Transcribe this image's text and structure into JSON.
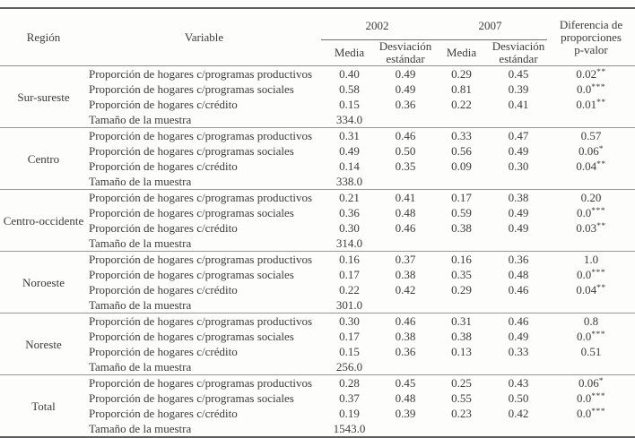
{
  "table": {
    "header": {
      "region": "Región",
      "variable": "Variable",
      "year_2002": "2002",
      "year_2007": "2007",
      "media_2002": "Media",
      "desviacion_2002": "Desviación\nestándar",
      "media_2007": "Media",
      "desviacion_2007": "Desviación\nestándar",
      "diferencia": "Diferencia de\nproporciones\np-valor"
    },
    "labels": {
      "sample": "Tamaño de la muestra"
    },
    "blocks": [
      {
        "region": "Sur-sureste",
        "rows": [
          {
            "variable": "Proporción de hogares c/programas productivos",
            "media_2002": "0.40",
            "de_2002": "0.49",
            "media_2007": "0.29",
            "de_2007": "0.45",
            "p": "0.02",
            "stars": "**"
          },
          {
            "variable": "Proporción de  hogares c/programas sociales",
            "media_2002": "0.58",
            "de_2002": "0.49",
            "media_2007": "0.81",
            "de_2007": "0.39",
            "p": "0.0",
            "stars": "***"
          },
          {
            "variable": "Proporción de hogares c/crédito",
            "media_2002": "0.15",
            "de_2002": "0.36",
            "media_2007": "0.22",
            "de_2007": "0.41",
            "p": "0.01",
            "stars": "**"
          }
        ],
        "sample_size": "334.0"
      },
      {
        "region": "Centro",
        "rows": [
          {
            "variable": "Proporción de hogares c/programas productivos",
            "media_2002": "0.31",
            "de_2002": "0.46",
            "media_2007": "0.33",
            "de_2007": "0.47",
            "p": "0.57",
            "stars": ""
          },
          {
            "variable": "Proporción de  hogares c/programas sociales",
            "media_2002": "0.49",
            "de_2002": "0.50",
            "media_2007": "0.56",
            "de_2007": "0.49",
            "p": "0.06",
            "stars": "*"
          },
          {
            "variable": "Proporción de hogares c/crédito",
            "media_2002": "0.14",
            "de_2002": "0.35",
            "media_2007": "0.09",
            "de_2007": "0.30",
            "p": "0.04",
            "stars": "**"
          }
        ],
        "sample_size": "338.0"
      },
      {
        "region": "Centro-occidente",
        "rows": [
          {
            "variable": "Proporción de hogares c/programas productivos",
            "media_2002": "0.21",
            "de_2002": "0.41",
            "media_2007": "0.17",
            "de_2007": "0.38",
            "p": "0.20",
            "stars": ""
          },
          {
            "variable": "Proporción de  hogares c/programas sociales",
            "media_2002": "0.36",
            "de_2002": "0.48",
            "media_2007": "0.59",
            "de_2007": "0.49",
            "p": "0.0",
            "stars": "***"
          },
          {
            "variable": "Proporción de hogares c/crédito",
            "media_2002": "0.30",
            "de_2002": "0.46",
            "media_2007": "0.38",
            "de_2007": "0.49",
            "p": "0.03",
            "stars": "**"
          }
        ],
        "sample_size": "314.0"
      },
      {
        "region": "Noroeste",
        "rows": [
          {
            "variable": "Proporción de hogares c/programas productivos",
            "media_2002": "0.16",
            "de_2002": "0.37",
            "media_2007": "0.16",
            "de_2007": "0.36",
            "p": "1.0",
            "stars": ""
          },
          {
            "variable": "Proporción de  hogares c/programas sociales",
            "media_2002": "0.17",
            "de_2002": "0.38",
            "media_2007": "0.35",
            "de_2007": "0.48",
            "p": "0.0",
            "stars": "***"
          },
          {
            "variable": "Proporción de hogares c/crédito",
            "media_2002": "0.22",
            "de_2002": "0.42",
            "media_2007": "0.29",
            "de_2007": "0.46",
            "p": "0.04",
            "stars": "**"
          }
        ],
        "sample_size": "301.0"
      },
      {
        "region": "Noreste",
        "rows": [
          {
            "variable": "Proporción de hogares c/programas productivos",
            "media_2002": "0.30",
            "de_2002": "0.46",
            "media_2007": "0.31",
            "de_2007": "0.46",
            "p": "0.8",
            "stars": ""
          },
          {
            "variable": "Proporción de  hogares c/programas sociales",
            "media_2002": "0.17",
            "de_2002": "0.38",
            "media_2007": "0.38",
            "de_2007": "0.49",
            "p": "0.0",
            "stars": "***"
          },
          {
            "variable": "Proporción de hogares c/crédito",
            "media_2002": "0.15",
            "de_2002": "0.36",
            "media_2007": "0.13",
            "de_2007": "0.33",
            "p": "0.51",
            "stars": ""
          }
        ],
        "sample_size": "256.0"
      },
      {
        "region": "Total",
        "rows": [
          {
            "variable": "Proporción de hogares c/programas productivos",
            "media_2002": "0.28",
            "de_2002": "0.45",
            "media_2007": "0.25",
            "de_2007": "0.43",
            "p": "0.06",
            "stars": "*"
          },
          {
            "variable": "Proporción de  hogares c/programas sociales",
            "media_2002": "0.37",
            "de_2002": "0.48",
            "media_2007": "0.55",
            "de_2007": "0.50",
            "p": "0.0",
            "stars": "***"
          },
          {
            "variable": "Proporción de hogares c/crédito",
            "media_2002": "0.19",
            "de_2002": "0.39",
            "media_2007": "0.23",
            "de_2007": "0.42",
            "p": "0.0",
            "stars": "***"
          }
        ],
        "sample_size": "1543.0"
      }
    ]
  }
}
